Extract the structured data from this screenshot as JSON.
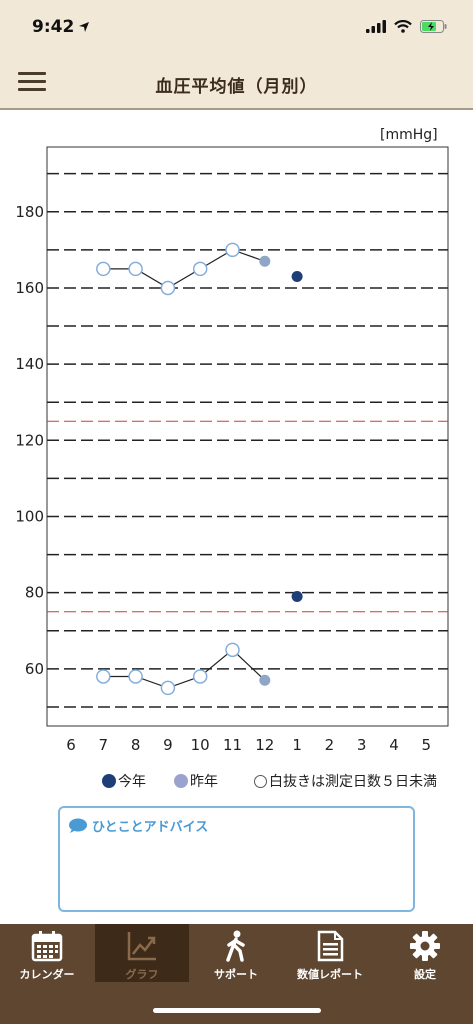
{
  "status": {
    "time": "9:42"
  },
  "nav": {
    "title": "血圧平均値（月別）"
  },
  "chart_data": {
    "type": "scatter",
    "unit": "[mmHg]",
    "ylim": [
      45,
      197
    ],
    "y_labels": [
      60,
      80,
      100,
      120,
      140,
      160,
      180
    ],
    "gridlines_black": [
      50,
      60,
      70,
      80,
      90,
      100,
      110,
      120,
      130,
      140,
      150,
      160,
      170,
      180,
      190
    ],
    "gridlines_red": [
      75,
      125
    ],
    "categories": [
      "6",
      "7",
      "8",
      "9",
      "10",
      "11",
      "12",
      "1",
      "2",
      "3",
      "4",
      "5"
    ],
    "series": [
      {
        "name": "昨年 (上)",
        "points": [
          {
            "x": "7",
            "y": 165,
            "hollow": true
          },
          {
            "x": "8",
            "y": 165,
            "hollow": true
          },
          {
            "x": "9",
            "y": 160,
            "hollow": true
          },
          {
            "x": "10",
            "y": 165,
            "hollow": true
          },
          {
            "x": "11",
            "y": 170,
            "hollow": true
          },
          {
            "x": "12",
            "y": 167,
            "hollow": false
          }
        ],
        "color": "#8fa6c6",
        "connect": true
      },
      {
        "name": "昨年 (下)",
        "points": [
          {
            "x": "7",
            "y": 58,
            "hollow": true
          },
          {
            "x": "8",
            "y": 58,
            "hollow": true
          },
          {
            "x": "9",
            "y": 55,
            "hollow": true
          },
          {
            "x": "10",
            "y": 58,
            "hollow": true
          },
          {
            "x": "11",
            "y": 65,
            "hollow": true
          },
          {
            "x": "12",
            "y": 57,
            "hollow": false
          }
        ],
        "color": "#8fa6c6",
        "connect": true
      },
      {
        "name": "今年 (上)",
        "points": [
          {
            "x": "1",
            "y": 163,
            "hollow": false
          }
        ],
        "color": "#1f3e78",
        "connect": false
      },
      {
        "name": "今年 (下)",
        "points": [
          {
            "x": "1",
            "y": 79,
            "hollow": false
          }
        ],
        "color": "#1f3e78",
        "connect": false
      }
    ]
  },
  "legend": {
    "this_year": "今年",
    "last_year": "昨年",
    "hollow_note": "白抜きは測定日数５日未満",
    "this_year_color": "#1f3e78",
    "last_year_color": "#9aa3cf"
  },
  "advice": {
    "title": "ひとことアドバイス"
  },
  "tabs": [
    {
      "label": "カレンダー",
      "icon": "calendar-icon"
    },
    {
      "label": "グラフ",
      "icon": "chart-icon"
    },
    {
      "label": "サポート",
      "icon": "walking-icon"
    },
    {
      "label": "数値レポート",
      "icon": "document-icon"
    },
    {
      "label": "設定",
      "icon": "gear-icon"
    }
  ]
}
